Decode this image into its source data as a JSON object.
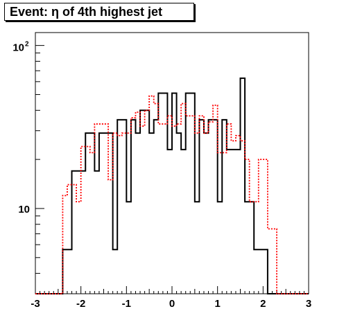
{
  "title": "Event: η of 4th highest jet",
  "chart_data": {
    "type": "histogram",
    "title": "Event: η of 4th highest jet",
    "xlabel": "",
    "ylabel": "",
    "xlim": [
      -3,
      3
    ],
    "ylim": [
      3,
      120
    ],
    "y_scale": "log",
    "grid": false,
    "x_ticks": [
      "-3",
      "-2",
      "-1",
      "0",
      "1",
      "2",
      "3"
    ],
    "y_tick_base": "10",
    "y_tick_exponent": "2",
    "y_tick_ten": "10",
    "bins": {
      "start": -3,
      "width": 0.1,
      "count": 60
    },
    "series": [
      {
        "line_style": "solid",
        "color": "#000000",
        "values": [
          0,
          0,
          0,
          0,
          0,
          0,
          5.6,
          5.6,
          17,
          17,
          17,
          29,
          29,
          17,
          29,
          29,
          29,
          5.6,
          35,
          35,
          11,
          35,
          29,
          40,
          40,
          29,
          35,
          51,
          51,
          23,
          51,
          29,
          23,
          51,
          51,
          11,
          35,
          29,
          35,
          35,
          11,
          35,
          23,
          23,
          23,
          63,
          11,
          11,
          5.6,
          5.6,
          5.6,
          0,
          0,
          0,
          0,
          0,
          0,
          0,
          0,
          0
        ]
      },
      {
        "line_style": "dotted",
        "color": "#ff0000",
        "values": [
          0,
          0,
          0,
          0,
          0,
          0,
          12,
          14,
          14,
          11,
          24,
          24,
          22,
          33,
          33,
          33,
          15,
          29,
          28,
          29,
          29,
          36,
          39,
          32,
          40,
          49,
          44,
          33,
          33,
          37,
          32,
          33,
          44,
          37,
          37,
          29,
          37,
          29,
          34,
          43,
          22,
          22,
          33,
          26,
          28,
          26,
          20,
          11,
          11,
          20,
          20,
          7.5,
          7.5,
          0,
          0,
          0,
          0,
          0,
          0,
          0
        ]
      }
    ],
    "colors": {
      "frame": "#000000",
      "series1": "#000000",
      "series2": "#ff0000"
    }
  }
}
